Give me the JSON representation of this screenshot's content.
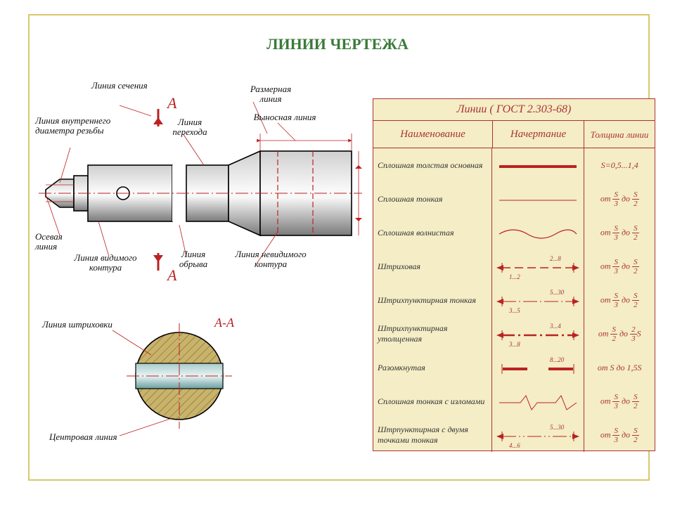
{
  "title": "ЛИНИИ ЧЕРТЕЖА",
  "table": {
    "header": "Линии   ( ГОСТ 2.303-68)",
    "col1": "Наименование",
    "col2": "Начертание",
    "col3": "Толщина линии",
    "rows": [
      {
        "name": "Сплошная толстая основная",
        "thick_text": "S=0,5...1,4",
        "thick_simple": true,
        "sample": "thick"
      },
      {
        "name": "Сплошная тонкая",
        "num": "S",
        "den": "3",
        "num2": "S",
        "den2": "2",
        "sample": "thin"
      },
      {
        "name": "Сплошная волнистая",
        "num": "S",
        "den": "3",
        "num2": "S",
        "den2": "2",
        "sample": "wavy"
      },
      {
        "name": "Штриховая",
        "num": "S",
        "den": "3",
        "num2": "S",
        "den2": "2",
        "sample": "dash",
        "ann1": "1...2",
        "ann2": "2...8"
      },
      {
        "name": "Штрихпунктирная тонкая",
        "num": "S",
        "den": "3",
        "num2": "S",
        "den2": "2",
        "sample": "dashdot",
        "ann1": "3...5",
        "ann2": "5...30"
      },
      {
        "name": "Штрихпунктирная утолщенная",
        "num": "S",
        "den": "2",
        "num2": "2",
        "den2": "3",
        "suffix": "S",
        "sample": "dashdot-thick",
        "ann1": "3...8",
        "ann2": "3...4"
      },
      {
        "name": "Разомкнутая",
        "thick_text": "от S до 1,5S",
        "thick_simple": true,
        "sample": "open",
        "ann2": "8...20"
      },
      {
        "name": "Сплошная тонкая с изломами",
        "num": "S",
        "den": "3",
        "num2": "S",
        "den2": "2",
        "sample": "zigzag"
      },
      {
        "name": "Штрпунктирная с двумя точками тонкая",
        "num": "S",
        "den": "3",
        "num2": "S",
        "den2": "2",
        "sample": "dash2dot",
        "ann1": "4...6",
        "ann2": "5...30"
      }
    ]
  },
  "callouts": {
    "section": "Линия сечения",
    "A": "А",
    "dim": "Размерная линия",
    "thread": "Линия внутреннего диаметра резьбы",
    "trans": "Линия перехода",
    "proj": "Выносная линия",
    "axis": "Осевая линия",
    "visible": "Линия видимого контура",
    "break": "Линия обрыва",
    "hidden": "Линия невидимого контура",
    "hatch": "Линия штриховки",
    "section_label": "А-А",
    "center": "Центровая линия"
  },
  "colors": {
    "accent": "#b22222",
    "frame": "#d9c86a",
    "title": "#3a7a3a",
    "tbl_bg": "#f4edc6",
    "shade1": "#e6e6e6",
    "shade2": "#b8b8b8",
    "hatch_brown": "#c9b36a",
    "hatch_blue": "#8fbcc8"
  }
}
